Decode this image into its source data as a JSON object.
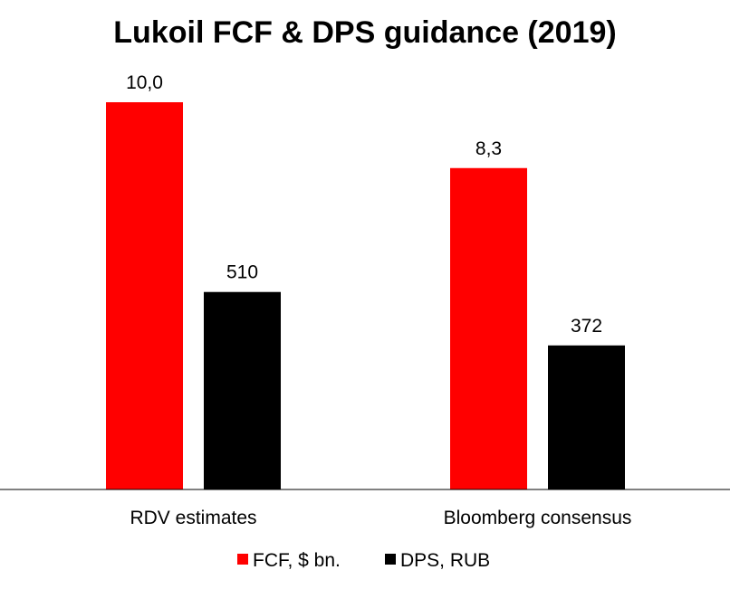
{
  "chart_data": {
    "type": "bar",
    "title": "Lukoil FCF & DPS guidance (2019)",
    "xlabel": "",
    "ylabel": "",
    "categories": [
      "RDV estimates",
      "Bloomberg consensus"
    ],
    "series": [
      {
        "name": "FCF, $ bn.",
        "color": "#ff0000",
        "values": [
          10.0,
          8.3
        ],
        "value_labels": [
          "10,0",
          "8,3"
        ],
        "scale_max": 10.0
      },
      {
        "name": "DPS, RUB",
        "color": "#000000",
        "values": [
          510,
          372
        ],
        "value_labels": [
          "510",
          "372"
        ],
        "scale_max": 1000
      }
    ],
    "legend_position": "bottom",
    "grid": false
  }
}
